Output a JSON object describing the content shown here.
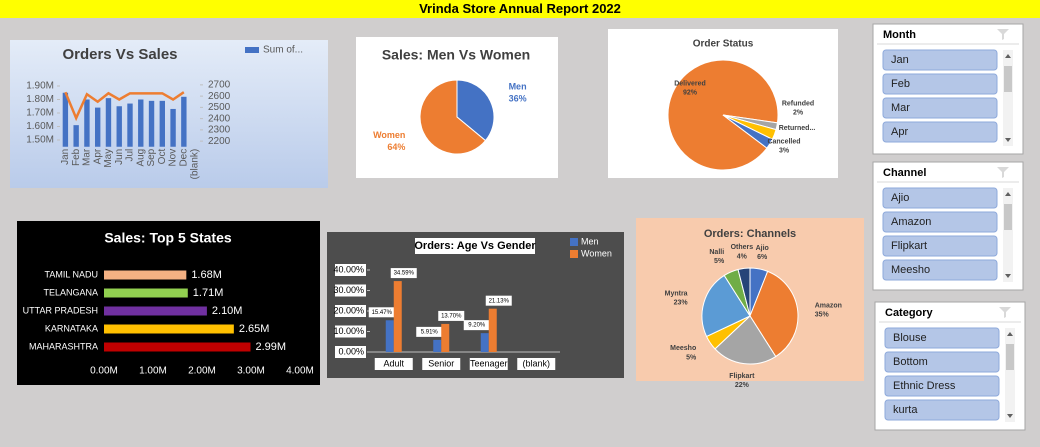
{
  "header": {
    "title": "Vrinda Store Annual Report 2022"
  },
  "chart_data": [
    {
      "type": "combo",
      "title": "Orders Vs Sales",
      "categories": [
        "Jan",
        "Feb",
        "Mar",
        "Apr",
        "May",
        "Jun",
        "Jul",
        "Aug",
        "Sep",
        "Oct",
        "Nov",
        "Dec",
        "(blank)"
      ],
      "series": [
        {
          "name": "Sum of...",
          "type": "bar",
          "color": "#4472c4",
          "values": [
            1850000,
            1610000,
            1800000,
            1740000,
            1810000,
            1750000,
            1770000,
            1800000,
            1790000,
            1790000,
            1730000,
            1820000,
            null
          ]
        },
        {
          "type": "line",
          "axis": "y2",
          "color": "#ed7d31",
          "values": [
            2635,
            2405,
            2617,
            2550,
            2625,
            2570,
            2625,
            2625,
            2625,
            2625,
            2570,
            2635,
            null
          ]
        }
      ],
      "ylim": [
        1450000,
        1950000
      ],
      "yticks": [
        {
          "value": 1500000,
          "label": "1.50M"
        },
        {
          "value": 1600000,
          "label": "1.60M"
        },
        {
          "value": 1700000,
          "label": "1.70M"
        },
        {
          "value": 1800000,
          "label": "1.80M"
        },
        {
          "value": 1900000,
          "label": "1.90M"
        }
      ],
      "y2lim": [
        2150,
        2750
      ],
      "y2ticks": [
        2200,
        2300,
        2400,
        2500,
        2600,
        2700
      ]
    },
    {
      "type": "pie",
      "title": "Sales: Men Vs Women",
      "categories": [
        "Men",
        "Women"
      ],
      "values": [
        36,
        64
      ],
      "value_labels": [
        "36%",
        "64%"
      ],
      "colors": [
        "#4472c4",
        "#ed7d31"
      ]
    },
    {
      "type": "pie",
      "title": "Order Status",
      "categories": [
        "Delivered",
        "Refunded",
        "Returned...",
        "Cancelled"
      ],
      "values": [
        92,
        2,
        3,
        3
      ],
      "value_labels": [
        "92%",
        "2%",
        null,
        "3%"
      ],
      "colors": [
        "#ed7d31",
        "#a5a5a5",
        "#ffc000",
        "#4472c4"
      ]
    },
    {
      "type": "hbar",
      "title": "Sales: Top 5 States",
      "categories": [
        "TAMIL NADU",
        "TELANGANA",
        "UTTAR PRADESH",
        "KARNATAKA",
        "MAHARASHTRA"
      ],
      "values": [
        1680000,
        1710000,
        2100000,
        2650000,
        2990000
      ],
      "value_labels": [
        "1.68M",
        "1.71M",
        "2.10M",
        "2.65M",
        "2.99M"
      ],
      "colors": [
        "#f4b183",
        "#92d050",
        "#7030a0",
        "#ffc000",
        "#c00000"
      ],
      "xlim": [
        0,
        4000000
      ],
      "xticks": [
        {
          "value": 0,
          "label": "0.00M"
        },
        {
          "value": 1000000,
          "label": "1.00M"
        },
        {
          "value": 2000000,
          "label": "2.00M"
        },
        {
          "value": 3000000,
          "label": "3.00M"
        },
        {
          "value": 4000000,
          "label": "4.00M"
        }
      ]
    },
    {
      "type": "bar",
      "title": "Orders: Age Vs Gender",
      "categories": [
        "Adult",
        "Senior",
        "Teenager",
        "(blank)"
      ],
      "series": [
        {
          "name": "Men",
          "color": "#4472c4",
          "values": [
            15.47,
            5.91,
            9.2,
            null
          ],
          "value_labels": [
            "15.47%",
            "5.91%",
            "9.20%",
            null
          ]
        },
        {
          "name": "Women",
          "color": "#ed7d31",
          "values": [
            34.59,
            13.7,
            21.13,
            null
          ],
          "value_labels": [
            "34.59%",
            "13.70%",
            "21.13%",
            null
          ]
        }
      ],
      "ylim": [
        0,
        40
      ],
      "yticks": [
        {
          "value": 0,
          "label": "0.00%"
        },
        {
          "value": 10,
          "label": "10.00%"
        },
        {
          "value": 20,
          "label": "20.00%"
        },
        {
          "value": 30,
          "label": "30.00%"
        },
        {
          "value": 40,
          "label": "40.00%"
        }
      ]
    },
    {
      "type": "pie",
      "title": "Orders: Channels",
      "categories": [
        "Ajio",
        "Amazon",
        "Flipkart",
        "Meesho",
        "Myntra",
        "Nalli",
        "Others"
      ],
      "values": [
        6,
        35,
        22,
        5,
        23,
        5,
        4
      ],
      "value_labels": [
        "6%",
        "35%",
        "22%",
        "5%",
        "23%",
        "5%",
        "4%"
      ],
      "colors": [
        "#4472c4",
        "#ed7d31",
        "#a5a5a5",
        "#ffc000",
        "#5b9bd5",
        "#70ad47",
        "#264478"
      ]
    }
  ],
  "slicers": [
    {
      "title": "Month",
      "items": [
        "Jan",
        "Feb",
        "Mar",
        "Apr"
      ]
    },
    {
      "title": "Channel",
      "items": [
        "Ajio",
        "Amazon",
        "Flipkart",
        "Meesho"
      ]
    },
    {
      "title": "Category",
      "items": [
        "Blouse",
        "Bottom",
        "Ethnic Dress",
        "kurta"
      ]
    }
  ]
}
